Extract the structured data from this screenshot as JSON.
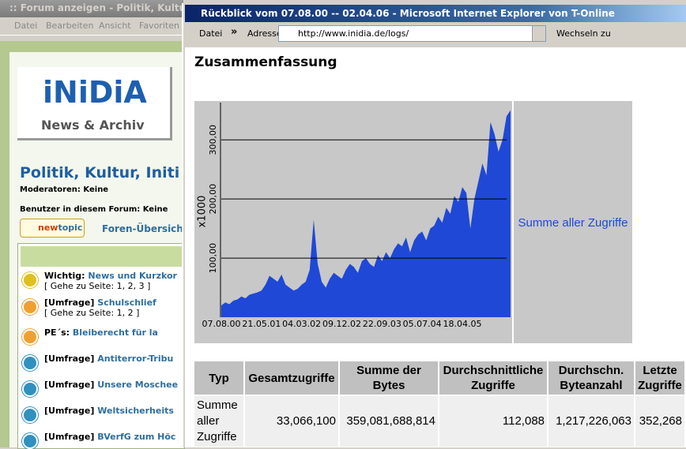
{
  "back_window": {
    "title": ":: Forum anzeigen - Politik, Kultur, In",
    "menu": [
      "Datei",
      "Bearbeiten",
      "Ansicht",
      "Favoriten"
    ],
    "logo": "iNiDiA",
    "logo_subtitle": "News & Archiv",
    "forum_title": "Politik, Kultur, Initi",
    "moderators": "Moderatoren: Keine",
    "users": "Benutzer in diesem Forum: Keine",
    "new_topic_button": [
      "new",
      "topic"
    ],
    "overview_link": "Foren-Übersich",
    "topics": [
      {
        "prefix": "Wichtig:",
        "title": "News und Kurzkor",
        "pages": "[ Gehe zu Seite: 1, 2, 3 ]"
      },
      {
        "prefix": "[Umfrage]",
        "title": "Schulschlief",
        "pages": "[ Gehe zu Seite: 1, 2 ]"
      },
      {
        "prefix": "PE´s:",
        "title": "Bleiberecht für la"
      },
      {
        "prefix": "[Umfrage]",
        "title": "Antiterror-Tribu"
      },
      {
        "prefix": "[Umfrage]",
        "title": "Unsere Moschee"
      },
      {
        "prefix": "[Umfrage]",
        "title": "Weltsicherheits"
      },
      {
        "prefix": "[Umfrage]",
        "title": "BVerfG zum Höc"
      }
    ]
  },
  "front_window": {
    "title": "Rückblick vom 07.08.00 -- 02.04.06 - Microsoft Internet Explorer von T-Online",
    "menu": "Datei",
    "chevron": "»",
    "address_label": "Adresse",
    "url": "http://www.inidia.de/logs/",
    "go_button": "Wechseln zu",
    "heading": "Zusammenfassung"
  },
  "chart_data": {
    "type": "area",
    "ylabel": "x1000",
    "categories": [
      "07.08.00",
      null,
      null,
      null,
      null,
      null,
      null,
      null,
      null,
      null,
      "21.05.01",
      null,
      null,
      null,
      null,
      null,
      null,
      null,
      null,
      null,
      "04.03.02",
      null,
      null,
      null,
      null,
      null,
      null,
      null,
      null,
      null,
      "09.12.02",
      null,
      null,
      null,
      null,
      null,
      null,
      null,
      null,
      null,
      "22.09.03",
      null,
      null,
      null,
      null,
      null,
      null,
      null,
      null,
      null,
      "05.07.04",
      null,
      null,
      null,
      null,
      null,
      null,
      null,
      null,
      null,
      "18.04.05",
      null,
      null,
      null,
      null,
      null,
      null,
      null,
      null,
      null,
      null,
      null,
      null
    ],
    "series": [
      {
        "name": "Summe aller Zugriffe",
        "color": "#1f48d6",
        "values": [
          20,
          25,
          22,
          28,
          30,
          35,
          32,
          38,
          40,
          42,
          45,
          55,
          70,
          65,
          60,
          72,
          55,
          50,
          45,
          48,
          55,
          60,
          80,
          165,
          90,
          60,
          50,
          65,
          75,
          70,
          65,
          80,
          90,
          85,
          75,
          95,
          100,
          90,
          85,
          105,
          95,
          110,
          100,
          115,
          125,
          120,
          135,
          110,
          130,
          140,
          145,
          130,
          150,
          155,
          170,
          160,
          185,
          175,
          205,
          195,
          220,
          210,
          150,
          200,
          230,
          260,
          240,
          330,
          310,
          280,
          300,
          340,
          350
        ]
      }
    ],
    "ylim": [
      0,
      363
    ],
    "yticks": [
      {
        "value": 100,
        "label": "100,00"
      },
      {
        "value": 200,
        "label": "200,00"
      },
      {
        "value": 300,
        "label": "300,00"
      }
    ],
    "grid": true,
    "legend": "right"
  },
  "table": {
    "header": [
      "Typ",
      "Gesamtzugriffe",
      "Summe der Bytes",
      "Durchschnittliche Zugriffe",
      "Durchschn. Byteanzahl",
      "Letzte Zugriffe"
    ],
    "rows": [
      [
        "Summe aller Zugriffe",
        "33,066,100",
        "359,081,688,814",
        "112,088",
        "1,217,226,063",
        "352,268"
      ]
    ]
  }
}
